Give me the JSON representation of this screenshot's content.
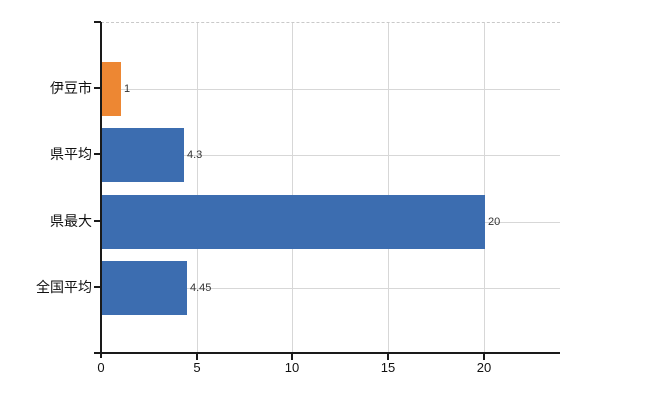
{
  "chart_data": {
    "type": "bar",
    "orientation": "horizontal",
    "title": "",
    "xlabel": "",
    "ylabel": "",
    "categories": [
      "伊豆市",
      "県平均",
      "県最大",
      "全国平均"
    ],
    "values": [
      1,
      4.3,
      20,
      4.45
    ],
    "value_labels": [
      "1",
      "4.3",
      "20",
      "4.45"
    ],
    "bar_colors": [
      "#ED8733",
      "#3C6DB0",
      "#3C6DB0",
      "#3C6DB0"
    ],
    "x_tick_values": [
      0,
      5,
      10,
      15,
      20
    ],
    "x_tick_labels": [
      "0",
      "5",
      "10",
      "15",
      "20"
    ],
    "xlim": [
      0,
      24
    ],
    "grid": true,
    "legend_position": "none",
    "colors": {
      "bar_orange": "#ED8733",
      "bar_blue": "#3C6DB0",
      "grid": "#D7D7D7",
      "axis": "#1A1A1A",
      "tick_text": "#111111",
      "value_text": "#333333",
      "background": "#FFFFFF"
    }
  }
}
